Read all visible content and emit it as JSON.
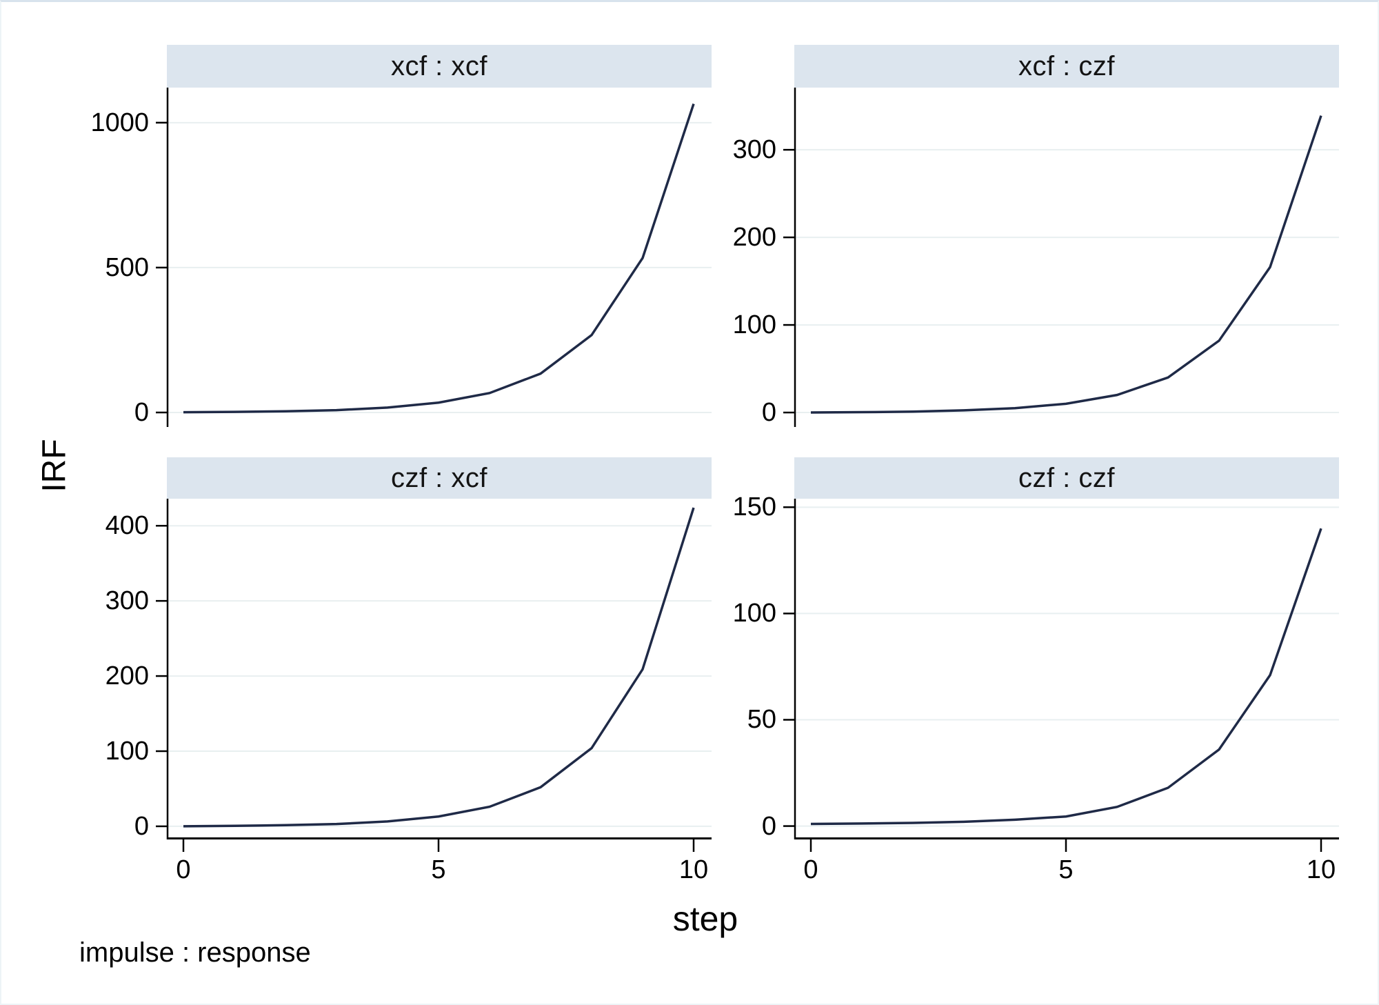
{
  "labels": {
    "y_axis_title": "IRF",
    "x_axis_title": "step",
    "note": "impulse : response"
  },
  "colors": {
    "header_bg": "#dce5ee",
    "gridline": "#e8eff0",
    "line": "#1f2a47",
    "axis": "#000000"
  },
  "chart_data": {
    "type": "line",
    "layout": "2x2 small multiples, shared x axis, legend none, horizontal gridlines on",
    "title": "",
    "xlabel": "step",
    "ylabel": "IRF",
    "note": "impulse : response",
    "x": [
      0,
      1,
      2,
      3,
      4,
      5,
      6,
      7,
      8,
      9,
      10
    ],
    "x_ticks": [
      0,
      5,
      10
    ],
    "xlim": [
      0,
      10
    ],
    "panels": [
      {
        "title": "xcf : xcf",
        "values": [
          1,
          2,
          4,
          8,
          17,
          34,
          67,
          134,
          267,
          533,
          1065
        ],
        "y_ticks": [
          0,
          500,
          1000
        ],
        "ylim": [
          -50,
          1121
        ]
      },
      {
        "title": "xcf : czf",
        "values": [
          0,
          0.4,
          1,
          2.5,
          5,
          10,
          20,
          40,
          82,
          166,
          339
        ],
        "y_ticks": [
          0,
          100,
          200,
          300
        ],
        "ylim": [
          -16.5,
          371
        ]
      },
      {
        "title": "czf : xcf",
        "values": [
          0,
          0.6,
          1.5,
          3,
          6.5,
          13,
          26,
          52,
          104,
          209,
          424
        ],
        "y_ticks": [
          0,
          100,
          200,
          300,
          400
        ],
        "ylim": [
          -17.5,
          436
        ]
      },
      {
        "title": "czf : czf",
        "values": [
          1,
          1.2,
          1.5,
          2,
          3,
          4.5,
          9,
          18,
          36,
          71,
          140
        ],
        "y_ticks": [
          0,
          50,
          100,
          150
        ],
        "ylim": [
          -6.3,
          154
        ]
      }
    ]
  }
}
